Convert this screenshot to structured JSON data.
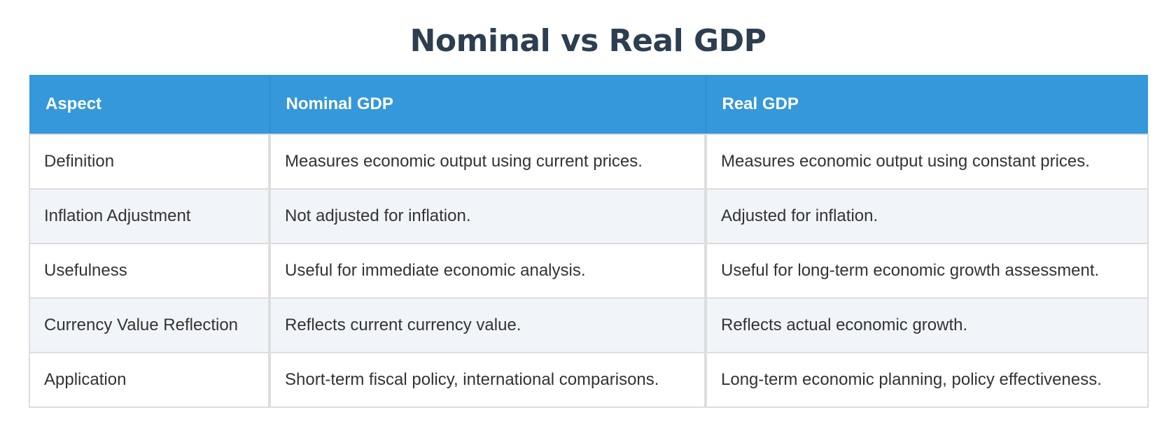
{
  "title": "Nominal vs Real GDP",
  "table": {
    "headers": [
      "Aspect",
      "Nominal GDP",
      "Real GDP"
    ],
    "rows": [
      [
        "Definition",
        "Measures economic output using current prices.",
        "Measures economic output using constant prices."
      ],
      [
        "Inflation Adjustment",
        "Not adjusted for inflation.",
        "Adjusted for inflation."
      ],
      [
        "Usefulness",
        "Useful for immediate economic analysis.",
        "Useful for long-term economic growth assessment."
      ],
      [
        "Currency Value Reflection",
        "Reflects current currency value.",
        "Reflects actual economic growth."
      ],
      [
        "Application",
        "Short-term fiscal policy, international comparisons.",
        "Long-term economic planning, policy effectiveness."
      ]
    ]
  },
  "colors": {
    "title": "#2c3e50",
    "header_bg": "#3498db",
    "header_text": "#ffffff",
    "row_alt_bg": "#f1f4f8",
    "border": "#dddddd",
    "cell_text": "#333333"
  }
}
